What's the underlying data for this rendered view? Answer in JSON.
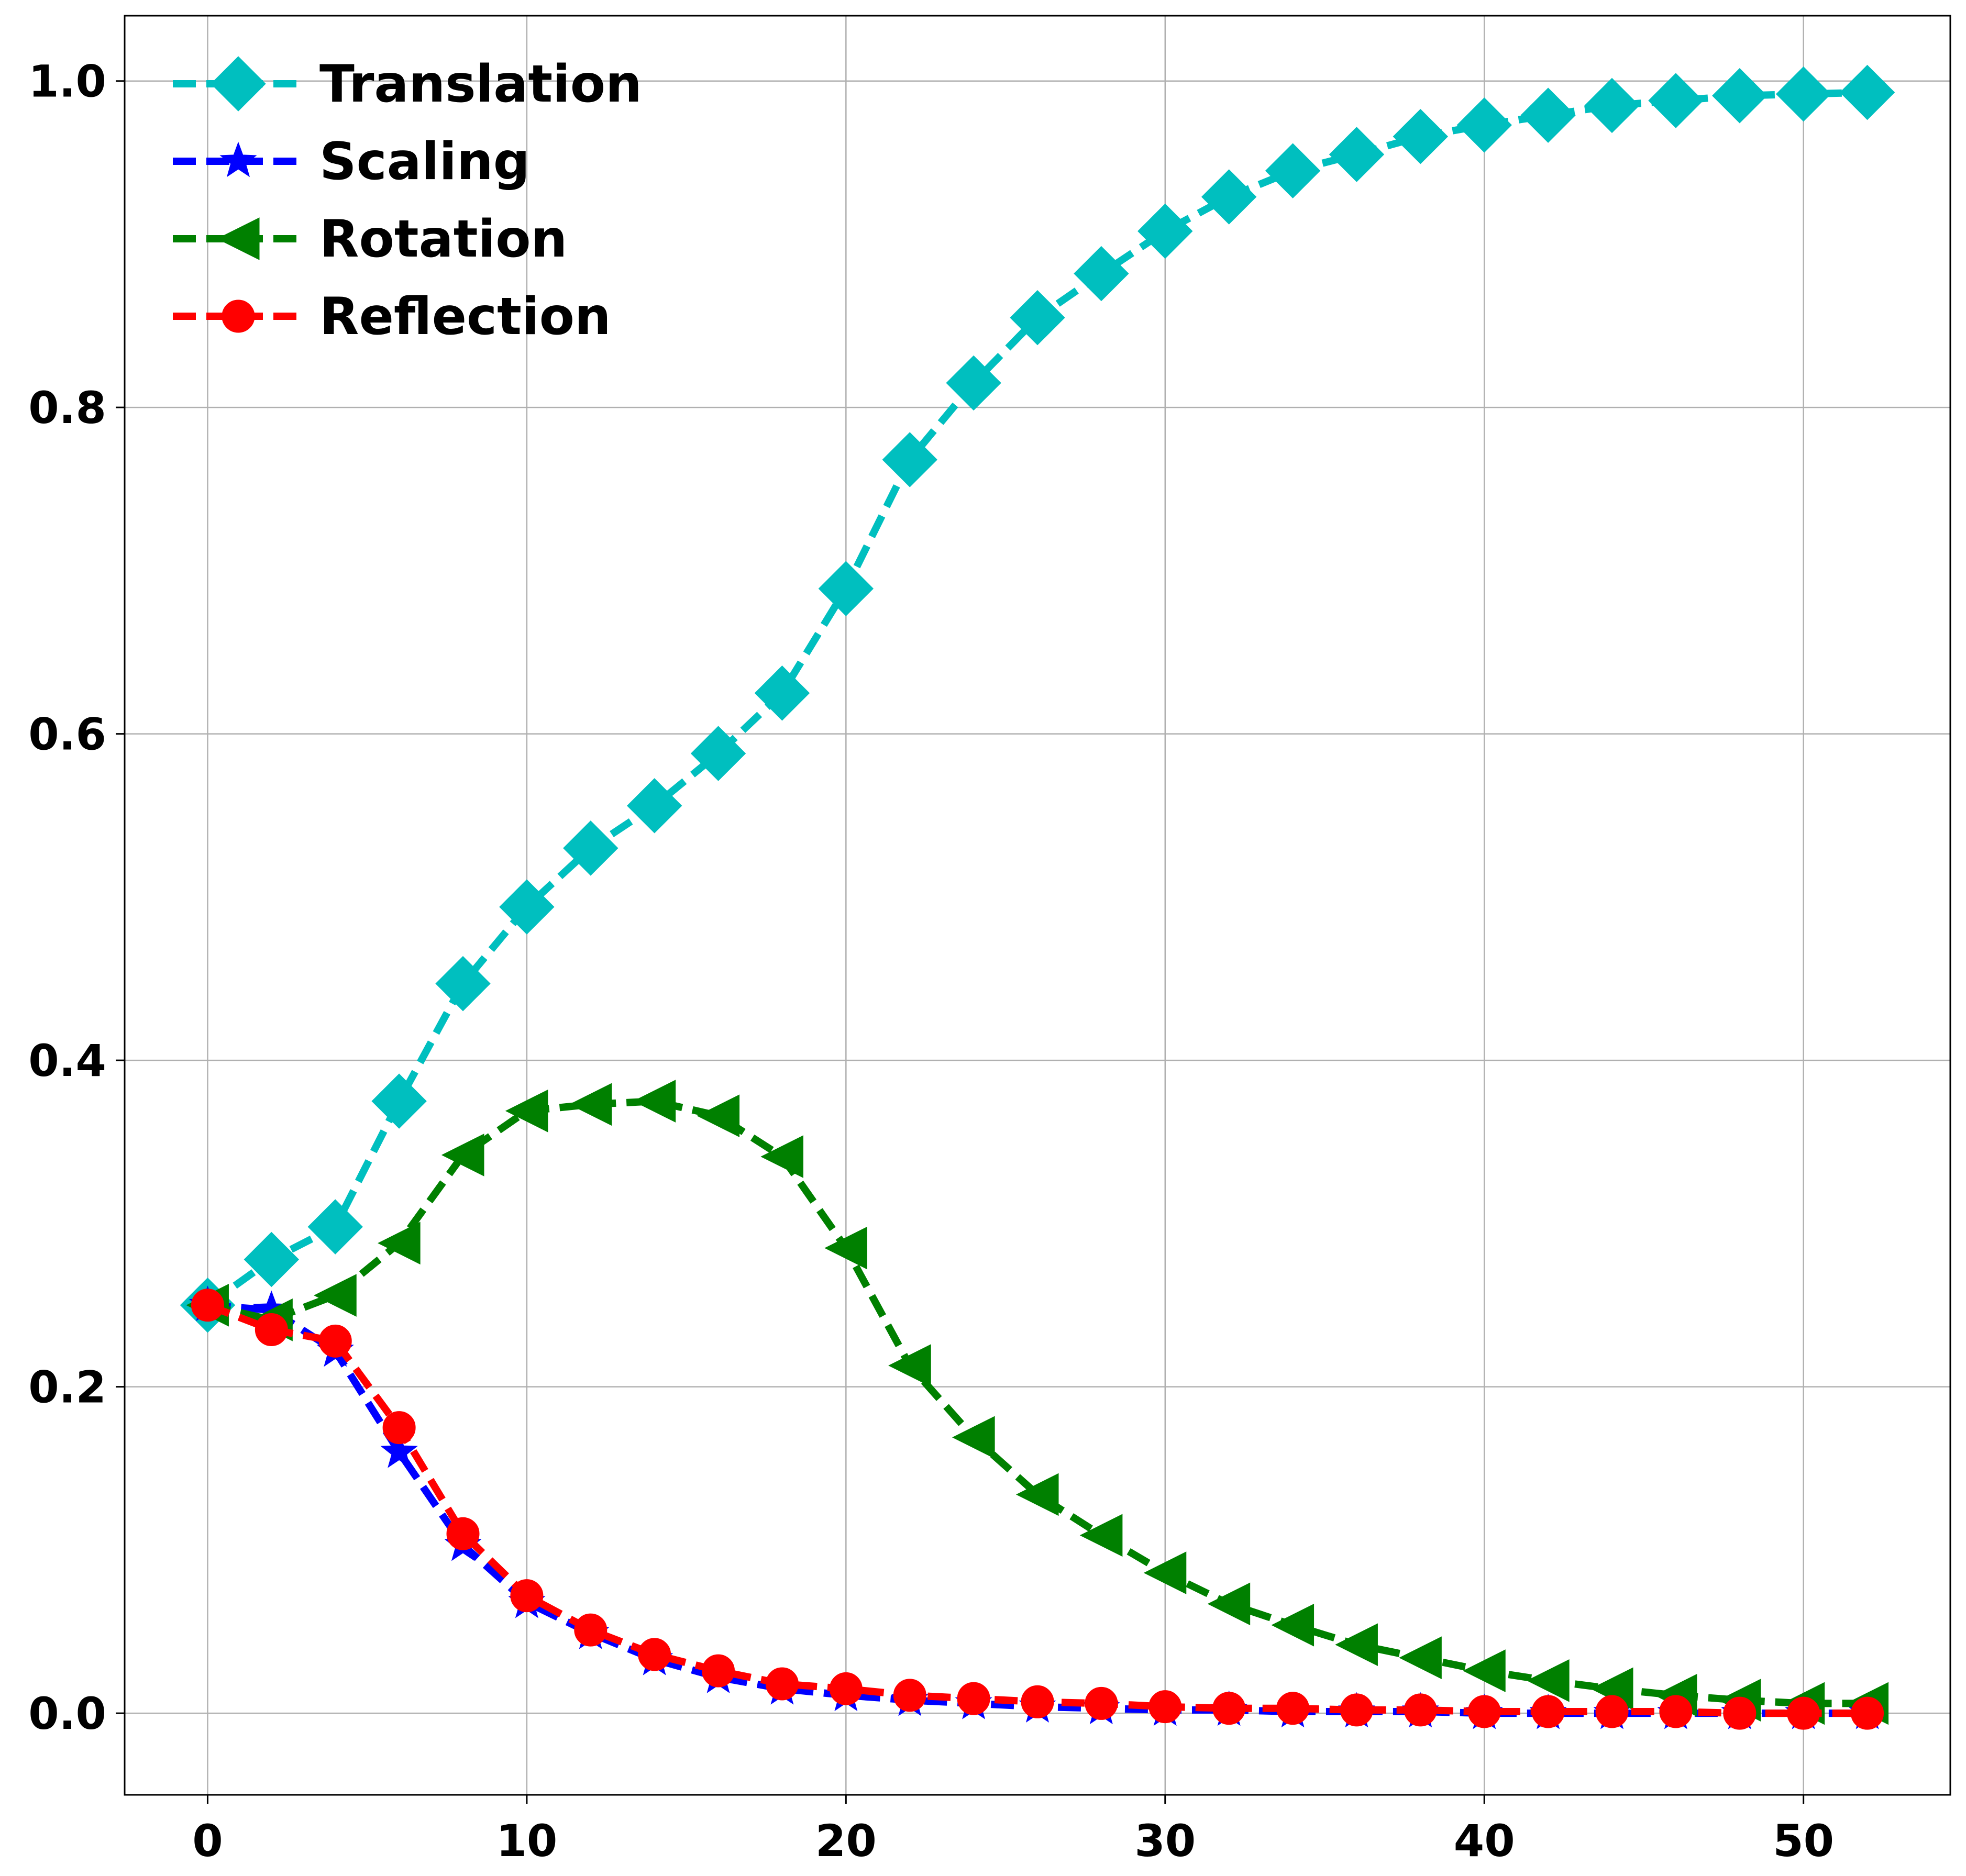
{
  "chart_data": {
    "type": "line",
    "title": "",
    "xlabel": "",
    "ylabel": "",
    "xlim": [
      -2.6,
      54.6
    ],
    "ylim": [
      -0.05,
      1.04
    ],
    "grid": true,
    "legend_position": "upper-left",
    "x_ticks": [
      0,
      10,
      20,
      30,
      40,
      50
    ],
    "y_ticks": [
      0.0,
      0.2,
      0.4,
      0.6,
      0.8,
      1.0
    ],
    "x_tick_labels": [
      "0",
      "10",
      "20",
      "30",
      "40",
      "50"
    ],
    "y_tick_labels": [
      "0.0",
      "0.2",
      "0.4",
      "0.6",
      "0.8",
      "1.0"
    ],
    "x": [
      0,
      2,
      4,
      6,
      8,
      10,
      12,
      14,
      16,
      18,
      20,
      22,
      24,
      26,
      28,
      30,
      32,
      34,
      36,
      38,
      40,
      42,
      44,
      46,
      48,
      50,
      52
    ],
    "series": [
      {
        "name": "Translation",
        "color": "#00bfbf",
        "marker": "diamond",
        "values": [
          0.25,
          0.278,
          0.298,
          0.375,
          0.447,
          0.494,
          0.53,
          0.556,
          0.588,
          0.625,
          0.689,
          0.768,
          0.815,
          0.855,
          0.882,
          0.908,
          0.929,
          0.945,
          0.955,
          0.966,
          0.973,
          0.979,
          0.985,
          0.988,
          0.991,
          0.992,
          0.993
        ]
      },
      {
        "name": "Scaling",
        "color": "#0000ff",
        "marker": "star",
        "values": [
          0.25,
          0.247,
          0.222,
          0.16,
          0.103,
          0.068,
          0.049,
          0.033,
          0.022,
          0.015,
          0.011,
          0.008,
          0.006,
          0.004,
          0.003,
          0.002,
          0.002,
          0.001,
          0.001,
          0.001,
          0.0,
          0.0,
          0.0,
          0.0,
          0.0,
          0.0,
          0.0
        ]
      },
      {
        "name": "Rotation",
        "color": "#008000",
        "marker": "triangle-left",
        "values": [
          0.25,
          0.241,
          0.256,
          0.288,
          0.342,
          0.369,
          0.373,
          0.375,
          0.366,
          0.341,
          0.285,
          0.213,
          0.169,
          0.134,
          0.109,
          0.086,
          0.067,
          0.054,
          0.042,
          0.034,
          0.026,
          0.02,
          0.015,
          0.011,
          0.008,
          0.006,
          0.006
        ]
      },
      {
        "name": "Reflection",
        "color": "#ff0000",
        "marker": "circle",
        "values": [
          0.25,
          0.235,
          0.228,
          0.175,
          0.11,
          0.072,
          0.051,
          0.036,
          0.026,
          0.018,
          0.015,
          0.011,
          0.009,
          0.007,
          0.006,
          0.004,
          0.003,
          0.003,
          0.002,
          0.002,
          0.001,
          0.001,
          0.001,
          0.001,
          0.0,
          0.0,
          0.0
        ]
      }
    ]
  }
}
